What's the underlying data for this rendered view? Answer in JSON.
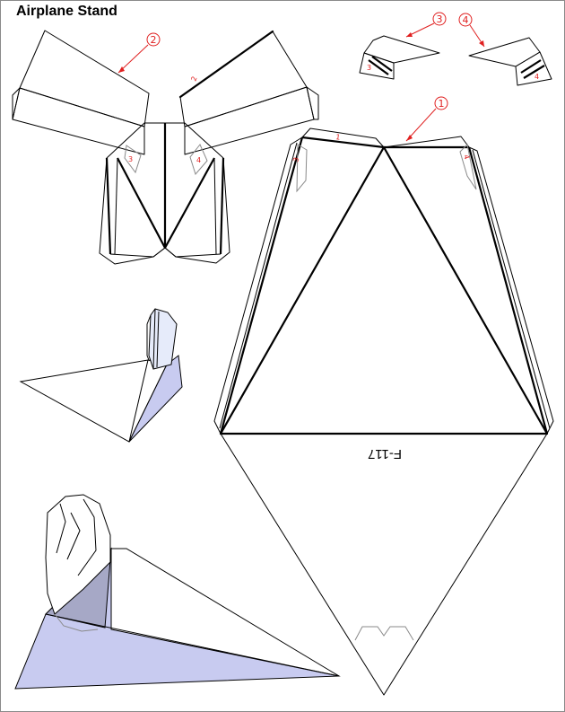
{
  "title": "Airplane Stand",
  "part_code": "F-117",
  "callouts": [
    "1",
    "2",
    "3",
    "4"
  ],
  "tab_labels": {
    "p2_flap": "2",
    "p3_tab": "3",
    "p4_tab": "4",
    "arm_tab_3": "3",
    "arm_tab_4": "4",
    "base_tab_3": "3",
    "base_tab_4": "4",
    "base_tab_1": "1"
  },
  "colors": {
    "callout": "#e02020",
    "model_shade_light": "#e6ebfa",
    "model_shade_mid": "#c8cbf0",
    "model_shade_dark": "#a6a8c6"
  }
}
